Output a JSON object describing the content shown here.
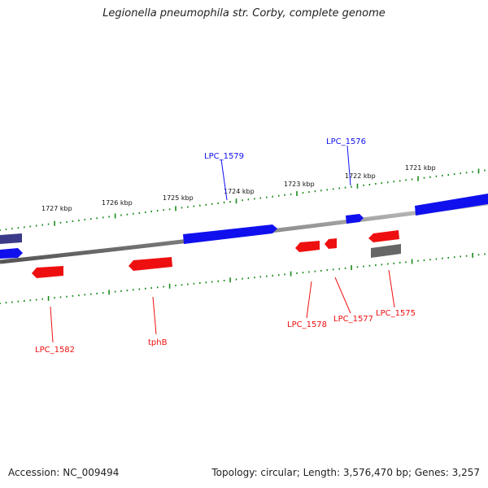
{
  "title": "Legionella pneumophila str. Corby, complete genome",
  "footer": {
    "accession": "Accession: NC_009494",
    "summary": "Topology: circular; Length: 3,576,470 bp; Genes: 3,257"
  },
  "colors": {
    "forward_gene": "#1010ee",
    "reverse_gene": "#ee1010",
    "other_feature": "#666666",
    "dark_feature": "#3a3a88",
    "tick": "#1a8a1a",
    "backbone": "#8a8a8a"
  },
  "scale_labels": [
    "1727 kbp",
    "1726 kbp",
    "1725 kbp",
    "1724 kbp",
    "1723 kbp",
    "1722 kbp",
    "1721 kbp"
  ],
  "forward_genes": [
    {
      "label": "LPC_1579"
    },
    {
      "label": "LPC_1576"
    }
  ],
  "reverse_genes": [
    {
      "label": "LPC_1582"
    },
    {
      "label": "tphB"
    },
    {
      "label": "LPC_1578"
    },
    {
      "label": "LPC_1577"
    },
    {
      "label": "LPC_1575"
    }
  ]
}
